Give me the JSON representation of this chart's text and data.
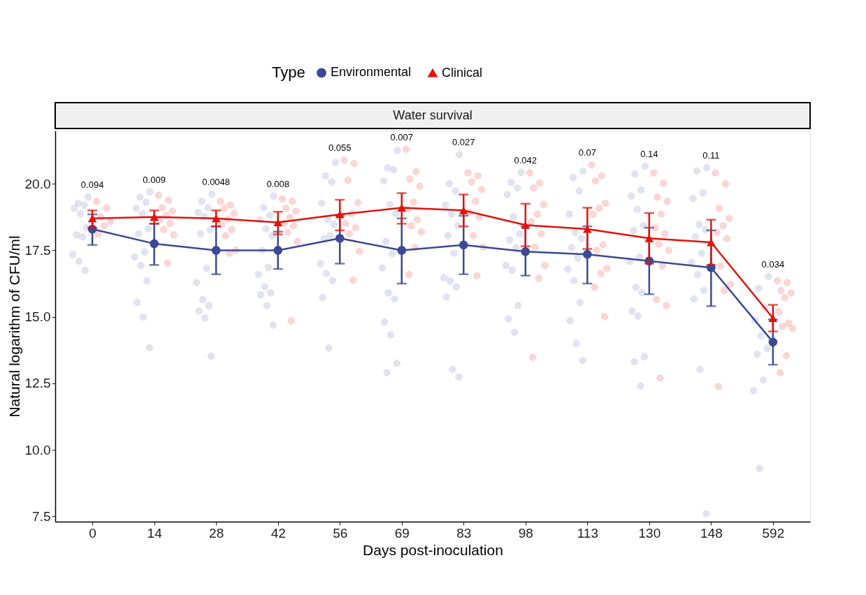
{
  "chart_data": {
    "type": "line",
    "title": "Water survival",
    "xlabel": "Days post-inoculation",
    "ylabel": "Natural logarithm of CFU/ml",
    "legend_title": "Type",
    "legend": "top",
    "grid": false,
    "line_style": "solid",
    "categories": [
      "0",
      "14",
      "28",
      "42",
      "56",
      "69",
      "83",
      "98",
      "113",
      "130",
      "148",
      "592"
    ],
    "ylim": [
      7.3,
      22.0
    ],
    "yticks": [
      {
        "value": 7.5,
        "label": "7.5"
      },
      {
        "value": 10,
        "label": "10.0"
      },
      {
        "value": 12.5,
        "label": "12.5"
      },
      {
        "value": 15,
        "label": "15.0"
      },
      {
        "value": 17.5,
        "label": "17.5"
      },
      {
        "value": 20,
        "label": "20.0"
      }
    ],
    "series": [
      {
        "type": "scatter",
        "color": "#c9cde6",
        "marker": "circle",
        "x": [
          "0",
          "0",
          "0",
          "0",
          "0",
          "0",
          "0",
          "0",
          "0",
          "0",
          "0",
          "14",
          "14",
          "14",
          "14",
          "14",
          "14",
          "14",
          "14",
          "14",
          "14",
          "14",
          "14",
          "14",
          "14",
          "28",
          "28",
          "28",
          "28",
          "28",
          "28",
          "28",
          "28",
          "28",
          "28",
          "28",
          "28",
          "28",
          "28",
          "42",
          "42",
          "42",
          "42",
          "42",
          "42",
          "42",
          "42",
          "42",
          "42",
          "42",
          "42",
          "42",
          "42",
          "56",
          "56",
          "56",
          "56",
          "56",
          "56",
          "56",
          "56",
          "56",
          "56",
          "56",
          "56",
          "56",
          "69",
          "69",
          "69",
          "69",
          "69",
          "69",
          "69",
          "69",
          "69",
          "69",
          "69",
          "69",
          "69",
          "69",
          "69",
          "83",
          "83",
          "83",
          "83",
          "83",
          "83",
          "83",
          "83",
          "83",
          "83",
          "83",
          "83",
          "83",
          "83",
          "98",
          "98",
          "98",
          "98",
          "98",
          "98",
          "98",
          "98",
          "98",
          "98",
          "98",
          "98",
          "98",
          "113",
          "113",
          "113",
          "113",
          "113",
          "113",
          "113",
          "113",
          "113",
          "113",
          "113",
          "113",
          "113",
          "113",
          "130",
          "130",
          "130",
          "130",
          "130",
          "130",
          "130",
          "130",
          "130",
          "130",
          "130",
          "130",
          "130",
          "130",
          "130",
          "130",
          "148",
          "148",
          "148",
          "148",
          "148",
          "148",
          "148",
          "148",
          "148",
          "148",
          "148",
          "148",
          "148",
          "148",
          "592",
          "592",
          "592",
          "592",
          "592",
          "592",
          "592",
          "592",
          "592",
          "592"
        ],
        "values": [
          19.5,
          19.27,
          19.2,
          19.08,
          18.88,
          18.35,
          18.08,
          18.0,
          17.34,
          17.09,
          16.75,
          19.7,
          19.5,
          19.31,
          19.08,
          18.88,
          18.31,
          18.12,
          17.44,
          17.25,
          16.93,
          16.36,
          15.54,
          14.99,
          13.84,
          19.61,
          19.34,
          19.1,
          18.92,
          18.76,
          18.28,
          18.12,
          16.82,
          16.29,
          15.65,
          15.42,
          15.22,
          14.96,
          13.52,
          19.54,
          19.1,
          18.81,
          18.65,
          18.31,
          18.05,
          17.5,
          16.86,
          16.59,
          16.13,
          15.9,
          15.83,
          15.42,
          14.69,
          20.8,
          20.3,
          20.07,
          19.27,
          18.65,
          18.47,
          17.94,
          18.05,
          17.0,
          16.63,
          16.36,
          15.72,
          13.82,
          21.26,
          20.6,
          20.53,
          20.11,
          19.22,
          18.88,
          17.83,
          17.37,
          16.84,
          15.9,
          15.67,
          14.8,
          14.32,
          13.25,
          12.9,
          21.1,
          20.0,
          19.73,
          19.2,
          18.86,
          18.42,
          18.05,
          17.39,
          16.47,
          16.34,
          16.13,
          15.74,
          13.02,
          12.74,
          20.43,
          20.05,
          19.84,
          19.59,
          18.76,
          18.12,
          17.89,
          17.6,
          16.93,
          16.75,
          15.42,
          14.92,
          14.41,
          20.48,
          20.23,
          19.73,
          18.86,
          18.17,
          17.94,
          17.6,
          17.21,
          16.79,
          16.36,
          15.54,
          14.85,
          14.0,
          13.36,
          20.66,
          20.37,
          19.77,
          19.54,
          19.04,
          18.42,
          18.24,
          17.25,
          17.09,
          16.11,
          15.9,
          15.22,
          15.03,
          13.5,
          13.31,
          12.4,
          20.6,
          20.48,
          19.66,
          19.45,
          18.47,
          18.28,
          18.01,
          17.39,
          17.05,
          16.59,
          15.99,
          15.67,
          13.02,
          7.6,
          16.52,
          16.06,
          15.33,
          14.87,
          14.28,
          13.82,
          13.59,
          12.63,
          12.22,
          9.3
        ]
      },
      {
        "type": "scatter",
        "color": "#f7b5b5",
        "marker": "circle",
        "x": [
          "0",
          "0",
          "0",
          "0",
          "0",
          "0",
          "14",
          "14",
          "14",
          "14",
          "14",
          "14",
          "14",
          "14",
          "14",
          "14",
          "28",
          "28",
          "28",
          "28",
          "28",
          "28",
          "28",
          "28",
          "28",
          "28",
          "42",
          "42",
          "42",
          "42",
          "42",
          "42",
          "42",
          "42",
          "42",
          "42",
          "56",
          "56",
          "56",
          "56",
          "56",
          "56",
          "56",
          "56",
          "56",
          "56",
          "69",
          "69",
          "69",
          "69",
          "69",
          "69",
          "69",
          "69",
          "69",
          "69",
          "69",
          "83",
          "83",
          "83",
          "83",
          "83",
          "83",
          "83",
          "83",
          "83",
          "83",
          "98",
          "98",
          "98",
          "98",
          "98",
          "98",
          "98",
          "98",
          "98",
          "98",
          "98",
          "113",
          "113",
          "113",
          "113",
          "113",
          "113",
          "113",
          "113",
          "113",
          "113",
          "113",
          "113",
          "130",
          "130",
          "130",
          "130",
          "130",
          "130",
          "130",
          "130",
          "130",
          "130",
          "130",
          "130",
          "130",
          "148",
          "148",
          "148",
          "148",
          "148",
          "148",
          "148",
          "148",
          "148",
          "148",
          "148",
          "592",
          "592",
          "592",
          "592",
          "592",
          "592",
          "592",
          "592",
          "592",
          "592",
          "592"
        ],
        "values": [
          19.34,
          19.1,
          18.76,
          18.58,
          18.42,
          18.12,
          19.57,
          19.38,
          19.1,
          18.97,
          18.81,
          18.65,
          18.51,
          18.28,
          18.08,
          17.02,
          19.34,
          19.2,
          19.08,
          18.88,
          18.65,
          18.47,
          18.28,
          18.05,
          17.5,
          17.39,
          19.43,
          19.34,
          19.08,
          18.97,
          18.74,
          18.51,
          18.42,
          18.17,
          17.83,
          14.85,
          20.89,
          20.76,
          20.14,
          19.29,
          18.88,
          18.51,
          18.35,
          18.12,
          17.46,
          16.38,
          21.3,
          20.46,
          20.18,
          19.91,
          19.31,
          19.04,
          18.65,
          18.42,
          18.19,
          17.6,
          16.59,
          20.41,
          20.3,
          20.07,
          19.79,
          19.34,
          18.92,
          18.74,
          18.05,
          17.62,
          16.54,
          20.41,
          20.02,
          19.84,
          19.22,
          18.86,
          18.58,
          18.12,
          17.62,
          16.93,
          16.45,
          13.48,
          20.71,
          20.3,
          20.11,
          19.27,
          19.08,
          18.86,
          17.71,
          17.5,
          16.82,
          16.63,
          16.11,
          15.01,
          20.41,
          20.02,
          19.5,
          19.34,
          18.86,
          18.35,
          18.12,
          17.73,
          17.5,
          16.91,
          15.65,
          15.42,
          12.7,
          20.41,
          20.0,
          19.08,
          18.7,
          18.42,
          18.17,
          17.94,
          16.91,
          16.22,
          15.99,
          12.38,
          16.36,
          16.29,
          15.99,
          15.9,
          15.72,
          15.19,
          14.76,
          14.64,
          14.57,
          13.54,
          12.9
        ]
      },
      {
        "name": "Environmental",
        "color": "#3b4994",
        "marker": "circle",
        "values": [
          18.3,
          17.75,
          17.5,
          17.5,
          17.95,
          17.5,
          17.7,
          17.45,
          17.35,
          17.1,
          16.85,
          14.05
        ],
        "errors": [
          [
            17.7,
            18.85
          ],
          [
            16.95,
            18.5
          ],
          [
            16.6,
            18.4
          ],
          [
            16.8,
            18.2
          ],
          [
            17.0,
            18.8
          ],
          [
            16.25,
            18.7
          ],
          [
            16.6,
            18.8
          ],
          [
            16.55,
            18.4
          ],
          [
            16.25,
            18.4
          ],
          [
            15.85,
            18.35
          ],
          [
            15.4,
            18.25
          ],
          [
            13.2,
            14.9
          ]
        ]
      },
      {
        "name": "Clinical",
        "color": "#e3120b",
        "marker": "triangle",
        "values": [
          18.7,
          18.75,
          18.7,
          18.55,
          18.85,
          19.1,
          19.0,
          18.45,
          18.3,
          17.95,
          17.8,
          14.95
        ],
        "errors": [
          [
            18.35,
            19.0
          ],
          [
            18.5,
            19.0
          ],
          [
            18.4,
            19.0
          ],
          [
            18.1,
            18.95
          ],
          [
            18.25,
            19.4
          ],
          [
            18.5,
            19.65
          ],
          [
            18.4,
            19.6
          ],
          [
            17.65,
            19.25
          ],
          [
            17.55,
            19.1
          ],
          [
            17.0,
            18.9
          ],
          [
            16.95,
            18.65
          ],
          [
            14.45,
            15.45
          ]
        ]
      }
    ],
    "annotations": [
      "0.094",
      "0.009",
      "0.0048",
      "0.008",
      "0.055",
      "0.007",
      "0.027",
      "0.042",
      "0.07",
      "0.14",
      "0.11",
      "0.034"
    ]
  }
}
